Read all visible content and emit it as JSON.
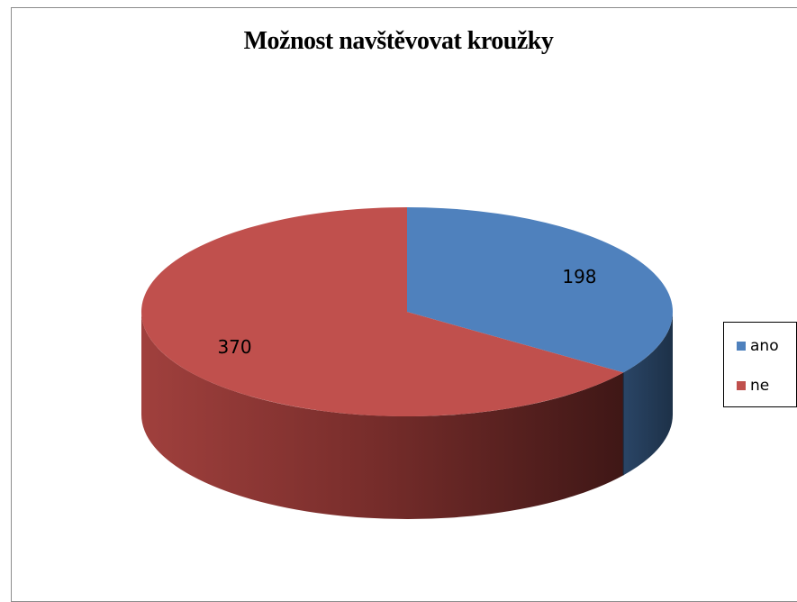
{
  "chart_data": {
    "type": "pie",
    "title": "Možnost navštěvovat kroužky",
    "categories": [
      "ano",
      "ne"
    ],
    "values": [
      198,
      370
    ],
    "colors": [
      "#4F81BD",
      "#C0504D"
    ],
    "data_labels": [
      "198",
      "370"
    ],
    "legend": {
      "placement": "right",
      "items": [
        {
          "label": "ano",
          "color": "#4F81BD"
        },
        {
          "label": "ne",
          "color": "#C0504D"
        }
      ]
    },
    "style": "3d-pie"
  }
}
